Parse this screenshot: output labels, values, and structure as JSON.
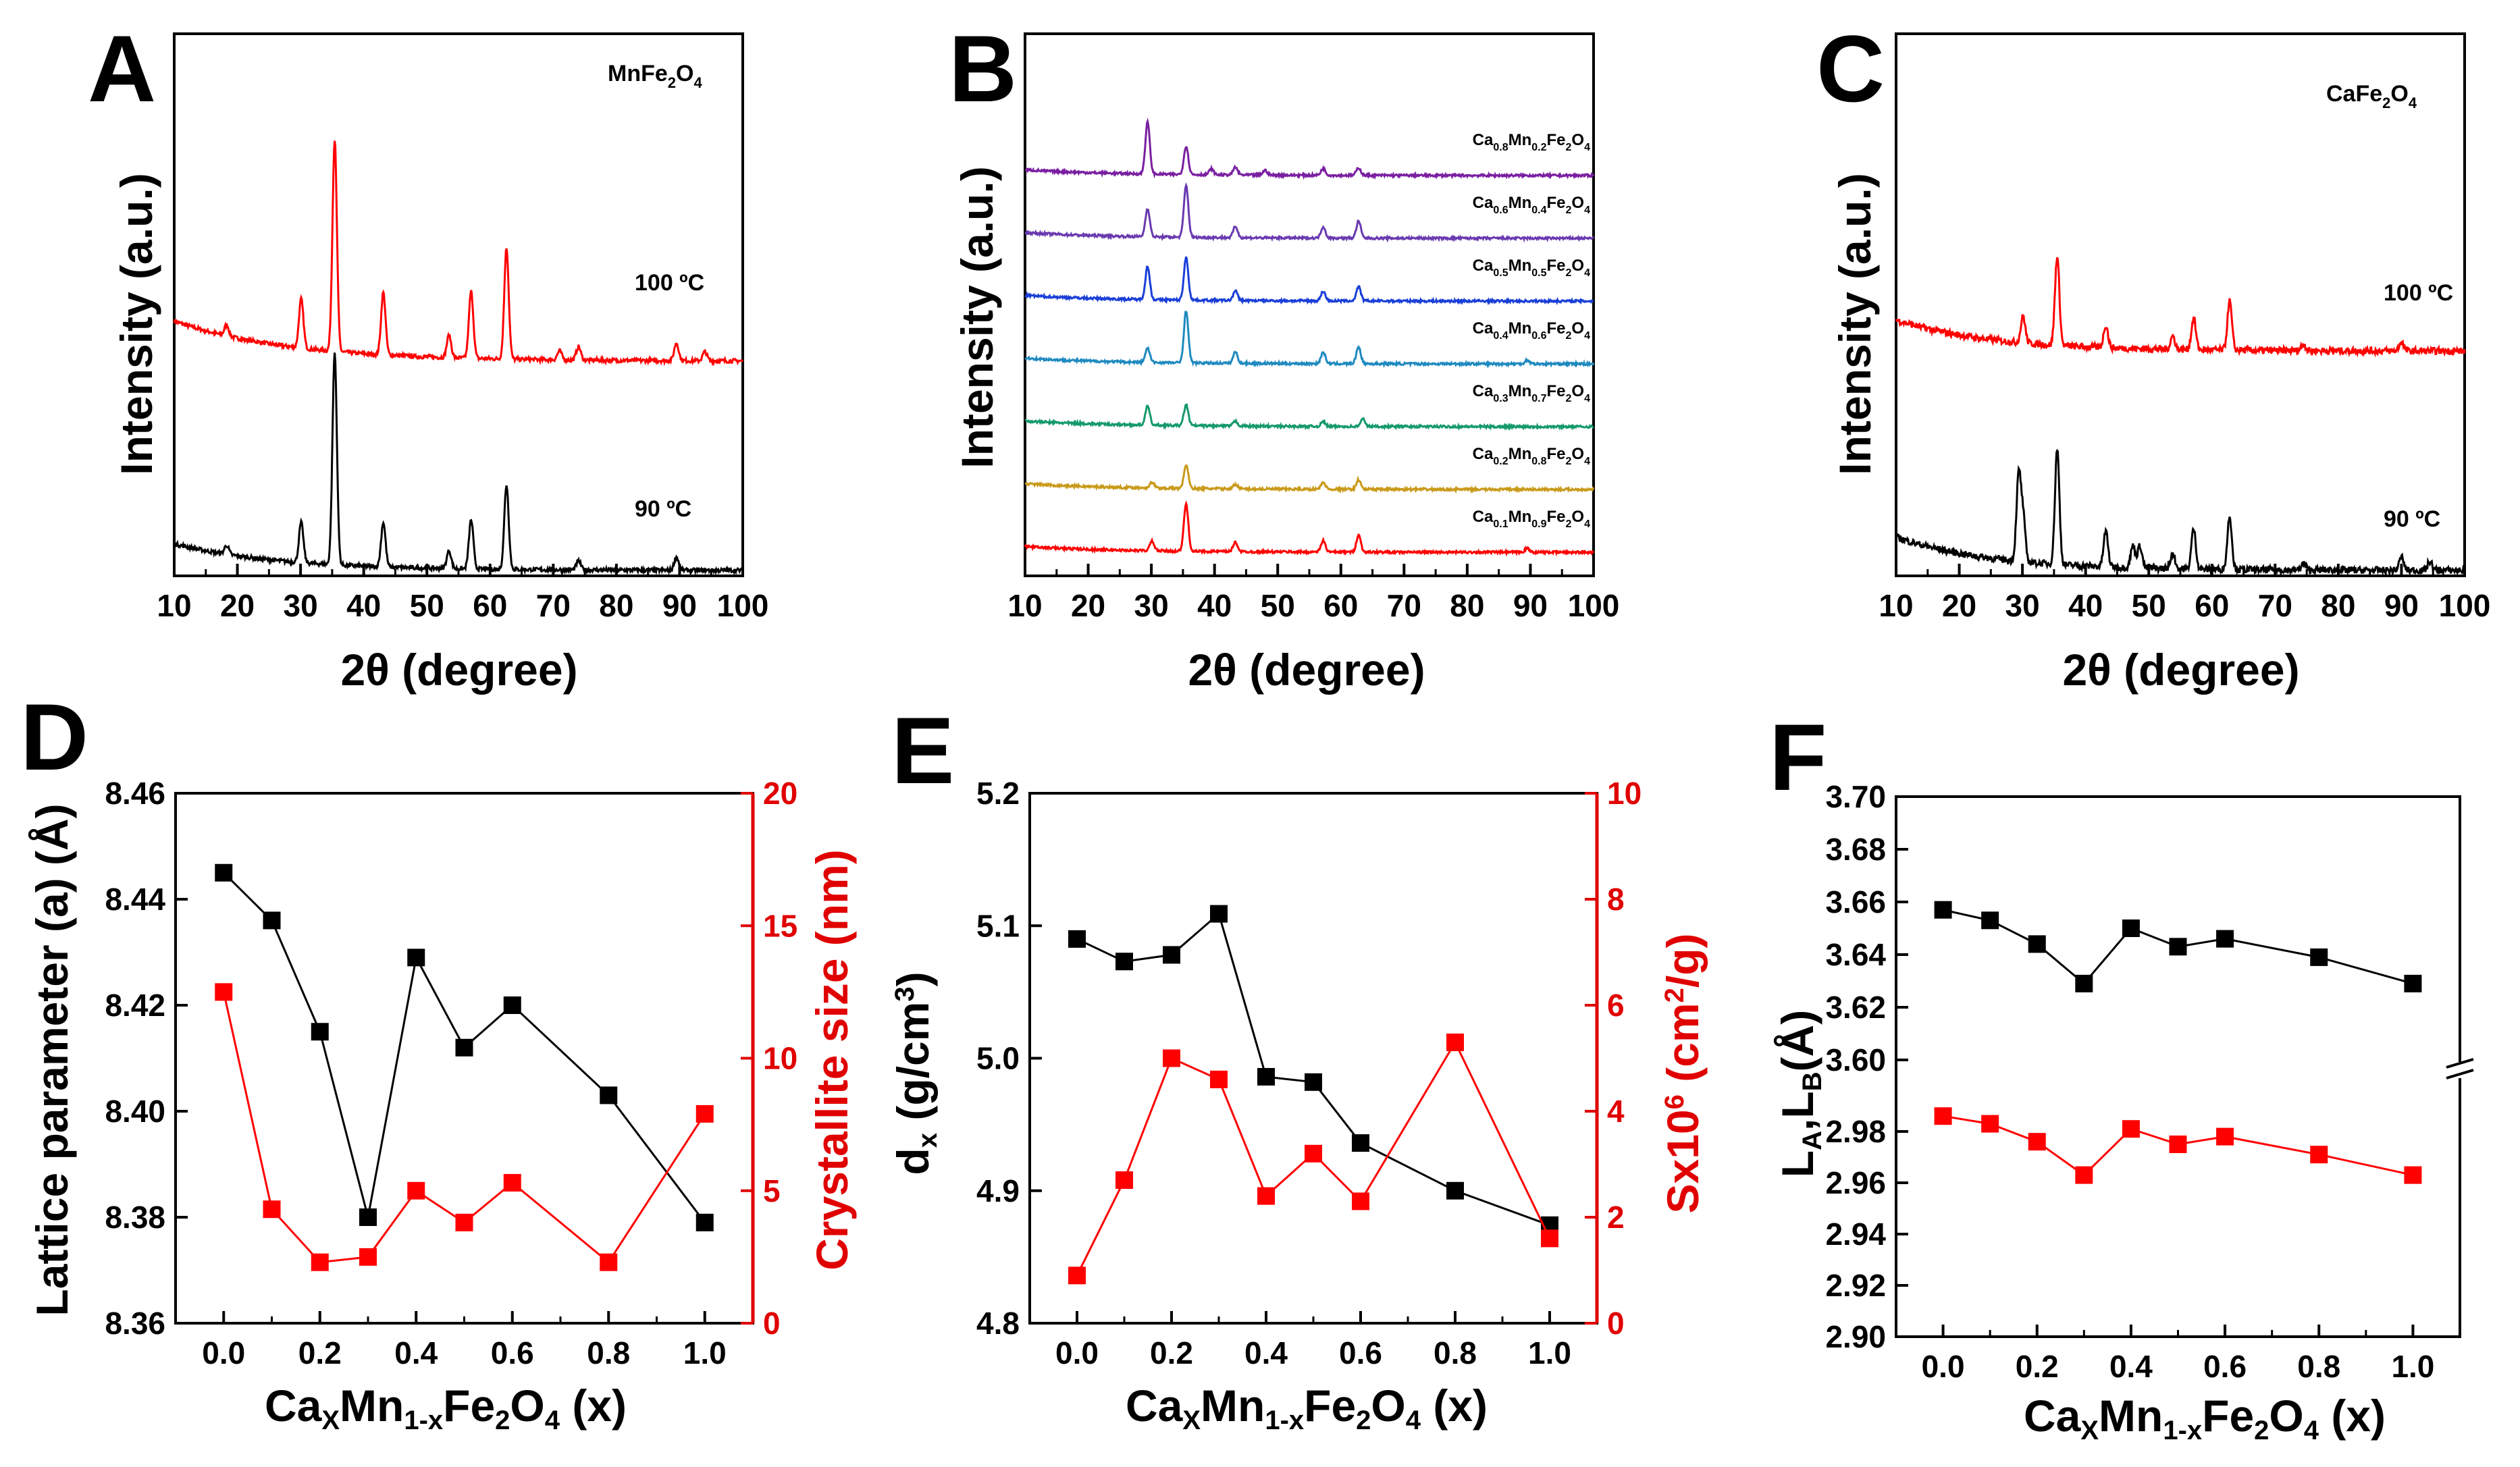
{
  "figure": {
    "colors": {
      "red": "#ff0000",
      "black": "#000000",
      "purple": "#7a1fa2",
      "violet": "#6a3ab0",
      "blue": "#1a3fd8",
      "cyan": "#1f8ac0",
      "green": "#159a6a",
      "gold": "#c99a1a",
      "axis_red": "#e00000"
    }
  },
  "chart_data": [
    {
      "panel": "A",
      "type": "line",
      "title": "MnFe2O4",
      "title_parts": {
        "base1": "MnFe",
        "sub1": "2",
        "base2": "O",
        "sub2": "4"
      },
      "xlabel": "2θ (degree)",
      "ylabel": "Intensity (a.u.)",
      "xlim": [
        10,
        100
      ],
      "xticks": [
        "10",
        "20",
        "30",
        "40",
        "50",
        "60",
        "70",
        "80",
        "90",
        "100"
      ],
      "series": [
        {
          "name": "100 ºC",
          "color": "#ff0000",
          "offset": 0.62,
          "baseline": 0.18,
          "decay": 0.6,
          "peaks": [
            [
              18.3,
              0.05
            ],
            [
              30.1,
              0.22
            ],
            [
              35.4,
              0.95
            ],
            [
              43.1,
              0.28
            ],
            [
              53.5,
              0.1
            ],
            [
              57.0,
              0.3
            ],
            [
              62.6,
              0.5
            ],
            [
              71.0,
              0.04
            ],
            [
              74.0,
              0.06
            ],
            [
              89.5,
              0.08
            ],
            [
              94,
              0.04
            ]
          ]
        },
        {
          "name": "90 ºC",
          "color": "#000000",
          "offset": 0.0,
          "baseline": 0.12,
          "decay": 0.55,
          "peaks": [
            [
              18.3,
              0.04
            ],
            [
              30.1,
              0.18
            ],
            [
              35.4,
              0.95
            ],
            [
              43.1,
              0.2
            ],
            [
              53.5,
              0.08
            ],
            [
              57.0,
              0.22
            ],
            [
              62.6,
              0.38
            ],
            [
              74.0,
              0.04
            ],
            [
              89.5,
              0.06
            ]
          ]
        }
      ]
    },
    {
      "panel": "B",
      "type": "line",
      "xlabel": "2θ (degree)",
      "ylabel": "Intensity (a.u.)",
      "xlim": [
        10,
        100
      ],
      "xticks": [
        "10",
        "20",
        "30",
        "40",
        "50",
        "60",
        "70",
        "80",
        "90",
        "100"
      ],
      "series": [
        {
          "name": "Ca0.8Mn0.2Fe2O4",
          "ca": "0.8",
          "mn": "0.2",
          "color": "#7a1fa2",
          "peaks": [
            [
              29.4,
              0.55
            ],
            [
              35.5,
              0.3
            ],
            [
              39.5,
              0.06
            ],
            [
              43.3,
              0.08
            ],
            [
              48,
              0.05
            ],
            [
              57.2,
              0.07
            ],
            [
              62.8,
              0.08
            ]
          ]
        },
        {
          "name": "Ca0.6Mn0.4Fe2O4",
          "ca": "0.6",
          "mn": "0.4",
          "color": "#6a3ab0",
          "peaks": [
            [
              29.4,
              0.3
            ],
            [
              35.5,
              0.55
            ],
            [
              43.3,
              0.12
            ],
            [
              57.2,
              0.12
            ],
            [
              62.8,
              0.18
            ]
          ]
        },
        {
          "name": "Ca0.5Mn0.5Fe2O4",
          "ca": "0.5",
          "mn": "0.5",
          "color": "#1a3fd8",
          "peaks": [
            [
              29.4,
              0.35
            ],
            [
              35.5,
              0.45
            ],
            [
              43.3,
              0.1
            ],
            [
              57.2,
              0.1
            ],
            [
              62.8,
              0.15
            ]
          ]
        },
        {
          "name": "Ca0.4Mn0.6Fe2O4",
          "ca": "0.4",
          "mn": "0.6",
          "color": "#1f8ac0",
          "peaks": [
            [
              29.4,
              0.15
            ],
            [
              35.5,
              0.55
            ],
            [
              43.3,
              0.12
            ],
            [
              57.2,
              0.12
            ],
            [
              62.8,
              0.18
            ],
            [
              89.5,
              0.04
            ]
          ]
        },
        {
          "name": "Ca0.3Mn0.7Fe2O4",
          "ca": "0.3",
          "mn": "0.7",
          "color": "#159a6a",
          "peaks": [
            [
              29.4,
              0.2
            ],
            [
              35.5,
              0.22
            ],
            [
              43.3,
              0.05
            ],
            [
              57.2,
              0.05
            ],
            [
              63.5,
              0.08
            ]
          ]
        },
        {
          "name": "Ca0.2Mn0.8Fe2O4",
          "ca": "0.2",
          "mn": "0.8",
          "color": "#c99a1a",
          "peaks": [
            [
              30.1,
              0.06
            ],
            [
              35.5,
              0.25
            ],
            [
              43.3,
              0.05
            ],
            [
              57.2,
              0.07
            ],
            [
              62.8,
              0.1
            ]
          ]
        },
        {
          "name": "Ca0.1Mn0.9Fe2O4",
          "ca": "0.1",
          "mn": "0.9",
          "color": "#ff0000",
          "peaks": [
            [
              30.1,
              0.1
            ],
            [
              35.5,
              0.5
            ],
            [
              43.3,
              0.1
            ],
            [
              57.2,
              0.12
            ],
            [
              62.8,
              0.18
            ],
            [
              89.5,
              0.04
            ]
          ]
        }
      ]
    },
    {
      "panel": "C",
      "type": "line",
      "title": "CaFe2O4",
      "title_parts": {
        "base1": "CaFe",
        "sub1": "2",
        "base2": "O",
        "sub2": "4"
      },
      "xlabel": "2θ (degree)",
      "ylabel": "Intensity (a.u.)",
      "xlim": [
        10,
        100
      ],
      "xticks": [
        "10",
        "20",
        "30",
        "40",
        "50",
        "60",
        "70",
        "80",
        "90",
        "100"
      ],
      "series": [
        {
          "name": "100 ºC",
          "color": "#ff0000",
          "offset": 0.58,
          "baseline": 0.14,
          "decay": 0.5,
          "peaks": [
            [
              30.1,
              0.12
            ],
            [
              35.5,
              0.4
            ],
            [
              43.2,
              0.1
            ],
            [
              53.8,
              0.06
            ],
            [
              57.1,
              0.14
            ],
            [
              62.8,
              0.22
            ],
            [
              74.5,
              0.03
            ],
            [
              90,
              0.04
            ]
          ]
        },
        {
          "name": "90 ºC",
          "color": "#000000",
          "offset": 0.0,
          "baseline": 0.15,
          "decay": 0.5,
          "peaks": [
            [
              29.4,
              0.38
            ],
            [
              30.1,
              0.2
            ],
            [
              35.5,
              0.52
            ],
            [
              43.2,
              0.16
            ],
            [
              47.5,
              0.1
            ],
            [
              48.6,
              0.1
            ],
            [
              53.8,
              0.07
            ],
            [
              57.1,
              0.18
            ],
            [
              62.8,
              0.24
            ],
            [
              74.5,
              0.03
            ],
            [
              90,
              0.06
            ],
            [
              94.5,
              0.04
            ]
          ]
        }
      ]
    },
    {
      "panel": "D",
      "type": "line",
      "xlabel_parts": {
        "ca": "Ca",
        "x": "X",
        "mn": "Mn",
        "onex": "1-x",
        "fe": "Fe",
        "two": "2",
        "o": "O",
        "four": "4",
        "tail": " (x)"
      },
      "ylabel": "Lattice parameter (a) (Å)",
      "ylabel2": "Crystallite size (nm)",
      "x": [
        0.0,
        0.1,
        0.2,
        0.3,
        0.4,
        0.5,
        0.6,
        0.8,
        1.0
      ],
      "xlim": [
        -0.1,
        1.1
      ],
      "xticks": [
        "0.0",
        "0.2",
        "0.4",
        "0.6",
        "0.8",
        "1.0"
      ],
      "ylim": [
        8.36,
        8.46
      ],
      "yticks": [
        "8.36",
        "8.38",
        "8.40",
        "8.42",
        "8.44",
        "8.46"
      ],
      "ylim2": [
        0,
        20
      ],
      "yticks2": [
        "0",
        "5",
        "10",
        "15",
        "20"
      ],
      "series": [
        {
          "name": "Lattice parameter",
          "axis": "left",
          "color": "#000000",
          "values": [
            8.445,
            8.436,
            8.415,
            8.38,
            8.429,
            8.412,
            8.42,
            8.403,
            8.379
          ]
        },
        {
          "name": "Crystallite size",
          "axis": "right",
          "color": "#ff0000",
          "values": [
            12.5,
            4.3,
            2.3,
            2.5,
            5.0,
            3.8,
            5.3,
            2.3,
            7.9
          ]
        }
      ]
    },
    {
      "panel": "E",
      "type": "line",
      "xlabel_parts": {
        "ca": "Ca",
        "x": "X",
        "mn": "Mn",
        "onex": "1-x",
        "fe": "Fe",
        "two": "2",
        "o": "O",
        "four": "4",
        "tail": " (x)"
      },
      "ylabel_parts": {
        "d": "d",
        "sub": "x",
        "unit": " (g/cm",
        "sup": "3",
        "close": ")"
      },
      "ylabel2_parts": {
        "s": "Sx10",
        "sup1": "6",
        "unit": " (cm",
        "sup2": "2",
        "close": "/g)"
      },
      "x": [
        0.0,
        0.1,
        0.2,
        0.3,
        0.4,
        0.5,
        0.6,
        0.8,
        1.0
      ],
      "xlim": [
        -0.1,
        1.1
      ],
      "xticks": [
        "0.0",
        "0.2",
        "0.4",
        "0.6",
        "0.8",
        "1.0"
      ],
      "ylim": [
        4.8,
        5.2
      ],
      "yticks": [
        "4.8",
        "4.9",
        "5.0",
        "5.1",
        "5.2"
      ],
      "ylim2": [
        0,
        10
      ],
      "yticks2": [
        "0",
        "2",
        "4",
        "6",
        "8",
        "10"
      ],
      "series": [
        {
          "name": "dx",
          "axis": "left",
          "color": "#000000",
          "values": [
            5.09,
            5.073,
            5.078,
            5.109,
            4.986,
            4.982,
            4.936,
            4.9,
            4.874
          ]
        },
        {
          "name": "S",
          "axis": "right",
          "color": "#ff0000",
          "values": [
            0.9,
            2.7,
            5.0,
            4.6,
            2.4,
            3.2,
            2.3,
            5.3,
            1.6
          ]
        }
      ]
    },
    {
      "panel": "F",
      "type": "line",
      "xlabel_parts": {
        "ca": "Ca",
        "x": "X",
        "mn": "Mn",
        "onex": "1-x",
        "fe": "Fe",
        "two": "2",
        "o": "O",
        "four": "4",
        "tail": " (x)"
      },
      "ylabel_parts": {
        "la": "L",
        "sa": "A",
        "comma": ",L",
        "sb": "B",
        "unit": "(Å)"
      },
      "x": [
        0.0,
        0.1,
        0.2,
        0.3,
        0.4,
        0.5,
        0.6,
        0.8,
        1.0
      ],
      "xlim": [
        -0.1,
        1.1
      ],
      "xticks": [
        "0.0",
        "0.2",
        "0.4",
        "0.6",
        "0.8",
        "1.0"
      ],
      "ylim_upper": [
        3.6,
        3.7
      ],
      "yticks_upper": [
        "3.60",
        "3.62",
        "3.64",
        "3.66",
        "3.68",
        "3.70"
      ],
      "ylim_lower": [
        2.9,
        3.0
      ],
      "yticks_lower": [
        "2.90",
        "2.92",
        "2.94",
        "2.96",
        "2.98"
      ],
      "series": [
        {
          "name": "LA",
          "color": "#000000",
          "values": [
            3.657,
            3.653,
            3.644,
            3.629,
            3.65,
            3.643,
            3.646,
            3.639,
            3.629
          ]
        },
        {
          "name": "LB",
          "color": "#ff0000",
          "values": [
            2.986,
            2.983,
            2.976,
            2.963,
            2.981,
            2.975,
            2.978,
            2.971,
            2.963
          ]
        }
      ]
    }
  ],
  "labels": {
    "A": "A",
    "B": "B",
    "C": "C",
    "D": "D",
    "E": "E",
    "F": "F",
    "a_s1": "100 ºC",
    "a_s2": "90 ºC",
    "c_s1": "100 ºC",
    "c_s2": "90 ºC",
    "two_theta": "2θ (degree)",
    "intensity": "Intensity (a.u.)",
    "lattice": "Lattice parameter (a) (Å)",
    "cryst": "Crystallite size (nm)"
  }
}
